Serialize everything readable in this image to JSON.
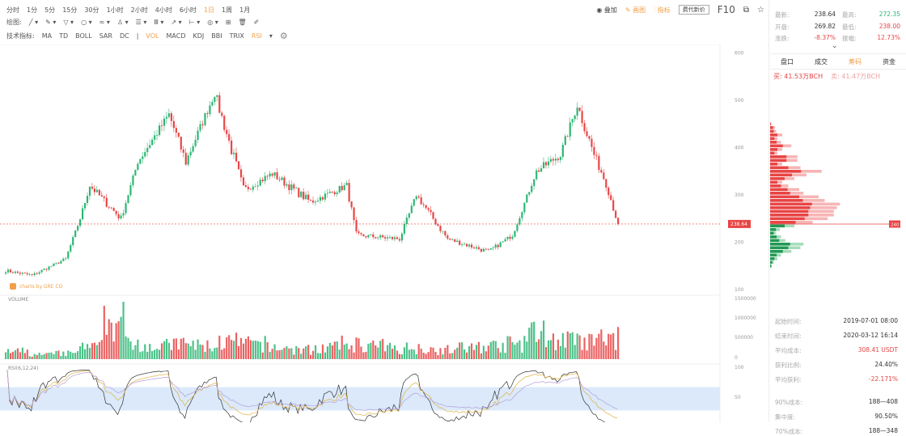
{
  "toolbar": {
    "periods": [
      "分时",
      "1分",
      "5分",
      "15分",
      "30分",
      "1小时",
      "2小时",
      "4小时",
      "6小时",
      "1日",
      "1周",
      "1月"
    ],
    "active_period": "1日",
    "draw_label": "绘图:",
    "draw_tools": [
      "╱ ▾",
      "✎ ▾",
      "▽ ▾",
      "○ ▾",
      "≈ ▾",
      "♙ ▾",
      "☰ ▾",
      "Ⅲ ▾",
      "↗ ▾",
      "⊢ ▾",
      "◎ ▾",
      "⊞",
      "🗑",
      "✐"
    ],
    "indicator_label": "技术指标:",
    "indicators": [
      "MA",
      "TD",
      "BOLL",
      "SAR",
      "DC",
      "VOL",
      "MACD",
      "KDJ",
      "BBI",
      "TRIX",
      "RSI"
    ],
    "active_indicators": [
      "VOL",
      "RSI"
    ],
    "more": "▾",
    "right": {
      "overlay": "叠加",
      "draw": "画图",
      "indicator": "指标",
      "button": "费代新价",
      "f10": "F10"
    }
  },
  "quote": {
    "latest_label": "最新:",
    "latest": "238.64",
    "high_label": "最高:",
    "high": "272.35",
    "open_label": "开盘:",
    "open": "269.82",
    "low_label": "最低:",
    "low": "238.00",
    "change_label": "涨跌:",
    "change": "-8.37%",
    "amp_label": "振幅:",
    "amp": "12.73%"
  },
  "tabs": [
    "盘口",
    "成交",
    "筹码",
    "资金"
  ],
  "active_tab": "筹码",
  "buysell": {
    "buy": "买: 41.53万BCH",
    "sell": "卖: 41.47万BCH"
  },
  "chip_stats": [
    {
      "label": "起始时间:",
      "value": "2019-07-01 08:00"
    },
    {
      "label": "结束时间:",
      "value": "2020-03-12 16:14",
      "color": ""
    },
    {
      "label": "平均成本:",
      "value": "308.41 USDT",
      "color": "red"
    },
    {
      "label": "获利比例:",
      "value": "24.40%"
    },
    {
      "label": "平均获利:",
      "value": "-22.171%",
      "color": "red"
    },
    {
      "label": "90%成本:",
      "value": "188—408"
    },
    {
      "label": "集中度:",
      "value": "90.50%"
    },
    {
      "label": "70%成本:",
      "value": "188—348"
    }
  ],
  "chart": {
    "watermark": "charts by GRE CO",
    "volume_label": "VOLUME",
    "rsi_label": "RSI(6,12,24)",
    "last_price": "238.64",
    "chip_price_label": "240",
    "colors": {
      "up": "#2bb673",
      "down": "#e84545",
      "rsi_band": "#dbe9fb"
    },
    "price_axis": [
      100,
      200,
      300,
      400,
      500,
      600
    ],
    "volume_axis": [
      "1500000",
      "1000000",
      "500000",
      "0"
    ],
    "rsi_axis": [
      100,
      50
    ]
  },
  "chart_data": {
    "type": "candlestick",
    "x_range": [
      "2019-07-01",
      "2020-03-12"
    ],
    "ylim": [
      100,
      600
    ],
    "weekly_close": [
      [
        "2019-07-01",
        140
      ],
      [
        "2019-07-12",
        130
      ],
      [
        "2019-07-26",
        165
      ],
      [
        "2019-08-01",
        250
      ],
      [
        "2019-08-05",
        320
      ],
      [
        "2019-08-18",
        250
      ],
      [
        "2019-08-25",
        370
      ],
      [
        "2019-09-07",
        470
      ],
      [
        "2019-09-14",
        370
      ],
      [
        "2019-09-26",
        515
      ],
      [
        "2019-10-08",
        310
      ],
      [
        "2019-10-20",
        345
      ],
      [
        "2019-11-05",
        285
      ],
      [
        "2019-11-20",
        320
      ],
      [
        "2019-11-24",
        215
      ],
      [
        "2019-12-12",
        207
      ],
      [
        "2019-12-19",
        300
      ],
      [
        "2020-01-01",
        207
      ],
      [
        "2020-01-18",
        180
      ],
      [
        "2020-01-28",
        215
      ],
      [
        "2020-02-07",
        350
      ],
      [
        "2020-02-17",
        385
      ],
      [
        "2020-02-24",
        490
      ],
      [
        "2020-03-02",
        385
      ],
      [
        "2020-03-07",
        325
      ],
      [
        "2020-03-12",
        238.64
      ]
    ],
    "volume_level": [
      200000,
      120000,
      150000,
      300000,
      1000000,
      450000,
      350000,
      400000,
      350000,
      450000,
      400000,
      300000,
      250000,
      300000,
      400000,
      350000,
      300000,
      300000,
      250000,
      300000,
      350000,
      400000,
      700000,
      500000,
      450000,
      550000
    ],
    "chip_distribution": {
      "prices_asc": [
        180,
        185,
        190,
        195,
        200,
        205,
        210,
        215,
        220,
        225,
        230,
        235,
        240,
        245,
        250,
        255,
        260,
        265,
        270,
        275,
        280,
        285,
        290,
        295,
        300,
        305,
        310,
        315,
        320,
        325,
        330,
        335,
        340,
        345,
        350,
        355,
        360,
        365,
        370,
        375
      ],
      "volume": [
        3,
        6,
        12,
        18,
        35,
        50,
        55,
        25,
        18,
        10,
        16,
        40,
        70,
        95,
        105,
        105,
        110,
        115,
        90,
        80,
        55,
        48,
        30,
        20,
        40,
        60,
        85,
        50,
        20,
        45,
        45,
        12,
        20,
        35,
        18,
        12,
        20,
        10,
        8,
        2
      ]
    }
  }
}
